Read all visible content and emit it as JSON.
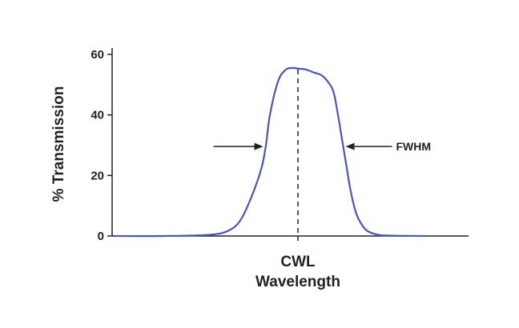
{
  "chart_data": {
    "type": "line",
    "title": "",
    "xlabel": "Wavelength",
    "ylabel": "% Transmission",
    "ylim": [
      0,
      60
    ],
    "yticks": [
      0,
      20,
      40,
      60
    ],
    "ytick_labels": [
      "0",
      "20",
      "40",
      "60"
    ],
    "grid": false,
    "x_axis_note": "x positions are relative wavelength offsets from the center wavelength",
    "series": [
      {
        "color": "#4a56b8",
        "x": [
          -230,
          -170,
          -110,
          -85,
          -70,
          -55,
          -45,
          -40,
          -35,
          -25,
          -15,
          -5,
          0,
          10,
          20,
          30,
          40,
          45,
          50,
          55,
          60,
          65,
          70,
          75,
          85,
          100,
          120,
          160
        ],
        "y": [
          0,
          0,
          0.4,
          2,
          6,
          15,
          23,
          30,
          40,
          51,
          55,
          55.5,
          55.3,
          55,
          54,
          53,
          50,
          47,
          40,
          32,
          24,
          16,
          10,
          6,
          2,
          0.4,
          0.1,
          0
        ]
      }
    ],
    "annotations": {
      "center_label": "CWL",
      "fwhm_label": "FWHM",
      "fwhm_level": 28
    }
  }
}
